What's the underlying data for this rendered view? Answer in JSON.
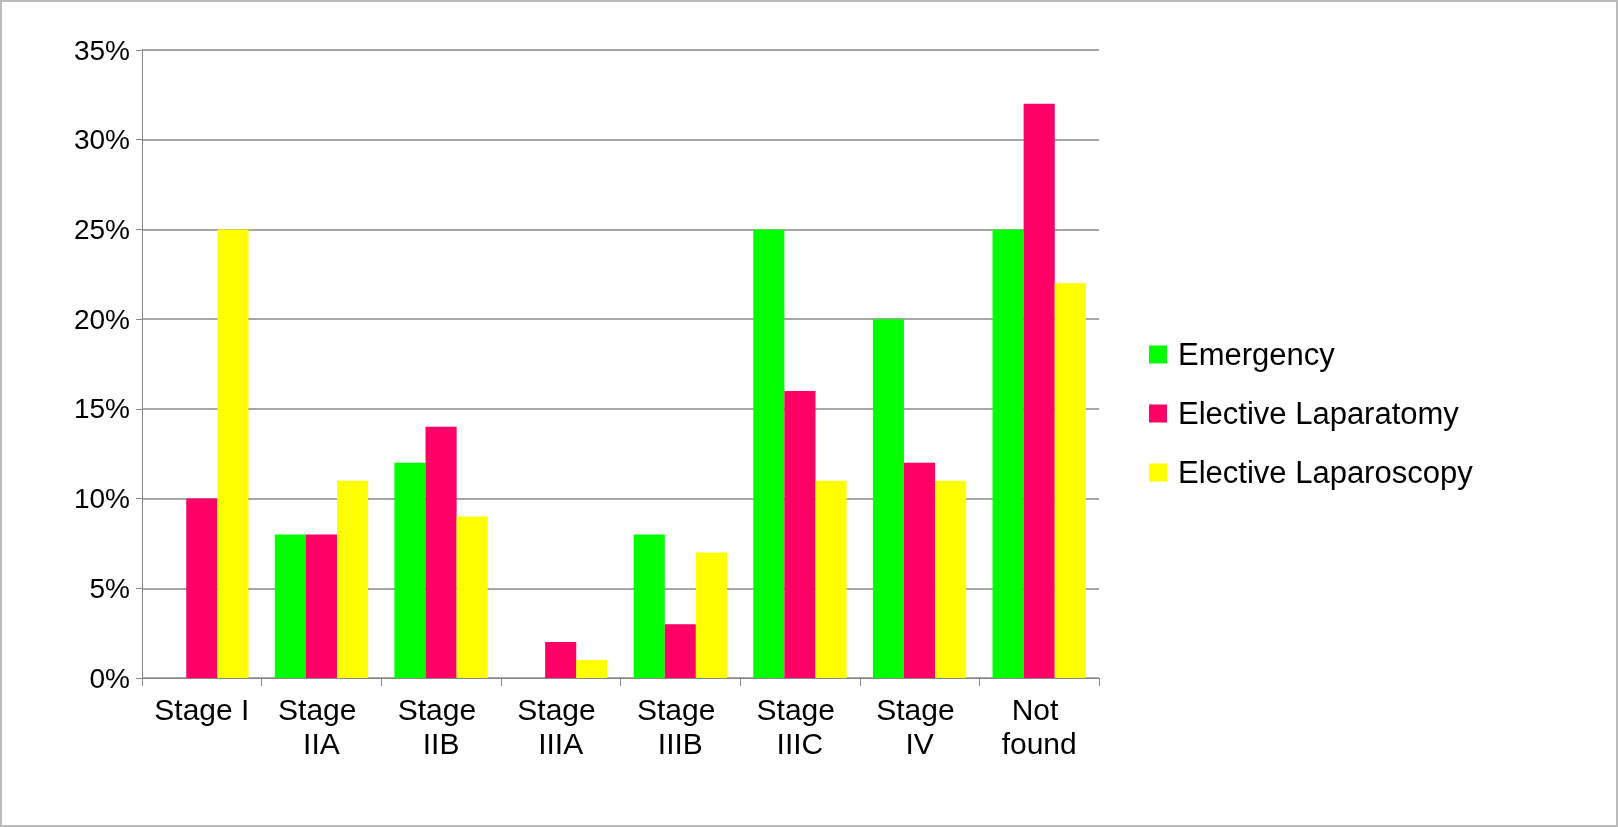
{
  "chart_data": {
    "type": "bar",
    "categories": [
      "Stage I",
      "Stage IIA",
      "Stage IIB",
      "Stage IIIA",
      "Stage IIIB",
      "Stage IIIC",
      "Stage IV",
      "Not found"
    ],
    "series": [
      {
        "name": "Emergency",
        "color": "#00ff00",
        "values": [
          0,
          8,
          12,
          0,
          8,
          25,
          20,
          25
        ]
      },
      {
        "name": "Elective Laparatomy",
        "color": "#ff0066",
        "values": [
          10,
          8,
          14,
          2,
          3,
          16,
          12,
          32
        ]
      },
      {
        "name": "Elective Laparoscopy",
        "color": "#ffff00",
        "values": [
          25,
          11,
          9,
          1,
          7,
          11,
          11,
          22
        ]
      }
    ],
    "ylim": [
      0,
      35
    ],
    "yticks": [
      {
        "value": 0,
        "label": "0%"
      },
      {
        "value": 5,
        "label": "5%"
      },
      {
        "value": 10,
        "label": "10%"
      },
      {
        "value": 15,
        "label": "15%"
      },
      {
        "value": 20,
        "label": "20%"
      },
      {
        "value": 25,
        "label": "25%"
      },
      {
        "value": 30,
        "label": "30%"
      },
      {
        "value": 35,
        "label": "35%"
      }
    ],
    "grid": "y",
    "legend": "right"
  }
}
